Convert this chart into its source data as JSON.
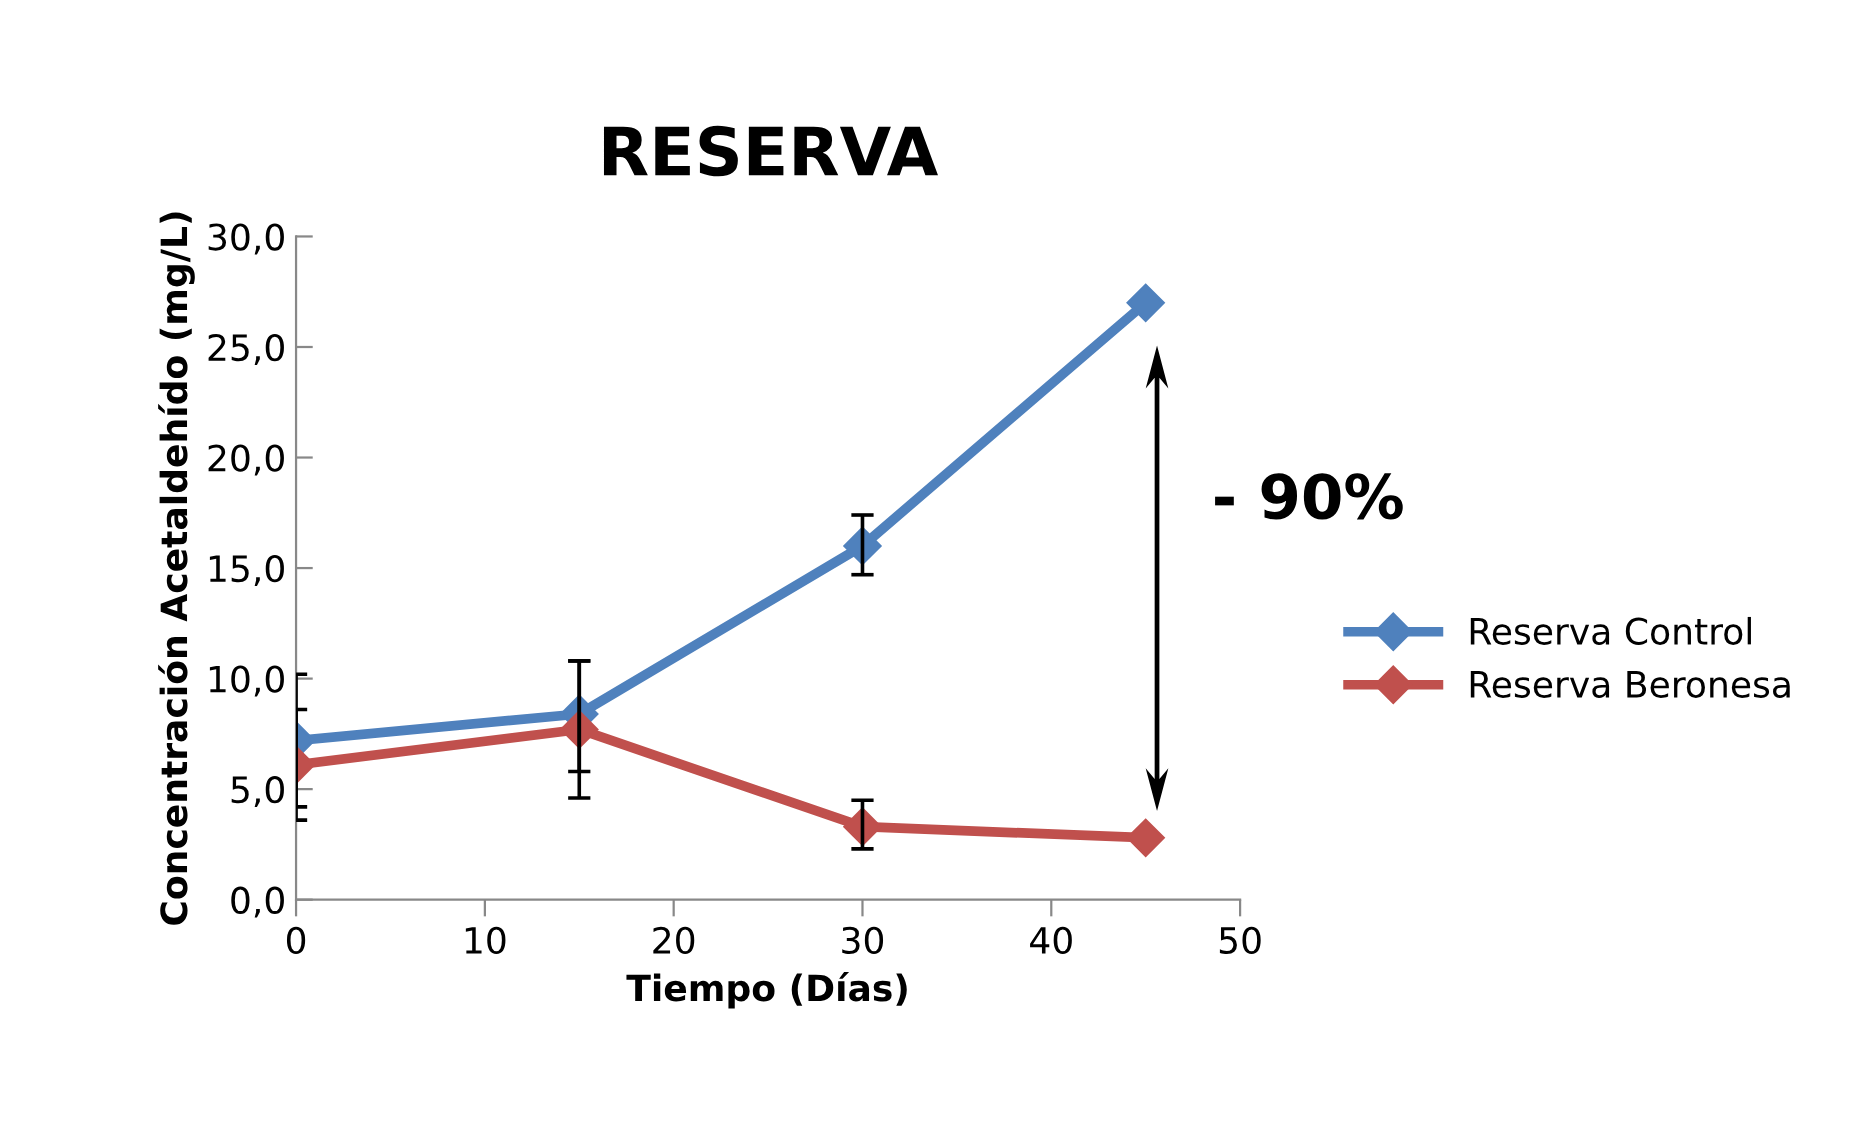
{
  "chart_data": {
    "type": "line",
    "title": "RESERVA",
    "xlabel": "Tiempo (Días)",
    "ylabel": "Concentración Acetaldehído (mg/L)",
    "x": [
      0,
      15,
      30,
      45
    ],
    "series": [
      {
        "name": "Reserva Control",
        "color": "#4f81bd",
        "values": [
          7.2,
          8.4,
          16.0,
          27.0
        ],
        "errors": [
          [
            4.2,
            10.2
          ],
          [
            5.8,
            10.8
          ],
          [
            14.7,
            17.4
          ],
          null
        ]
      },
      {
        "name": "Reserva Beronesa",
        "color": "#c0504d",
        "values": [
          6.1,
          7.7,
          3.3,
          2.8
        ],
        "errors": [
          [
            3.6,
            8.6
          ],
          [
            4.6,
            10.8
          ],
          [
            2.3,
            4.5
          ],
          null
        ]
      }
    ],
    "xlim": [
      0,
      50
    ],
    "xticks": [
      0,
      10,
      20,
      30,
      40,
      50
    ],
    "ylim": [
      0,
      30
    ],
    "yticks": [
      {
        "value": 0,
        "label": "0,0"
      },
      {
        "value": 5,
        "label": "5,0"
      },
      {
        "value": 10,
        "label": "10,0"
      },
      {
        "value": 15,
        "label": "15,0"
      },
      {
        "value": 20,
        "label": "20,0"
      },
      {
        "value": 25,
        "label": "25,0"
      },
      {
        "value": 30,
        "label": "30,0"
      }
    ],
    "annotations": [
      "- 90%"
    ],
    "marker": "diamond",
    "line_style": "solid",
    "grid": false,
    "legend": "right"
  }
}
